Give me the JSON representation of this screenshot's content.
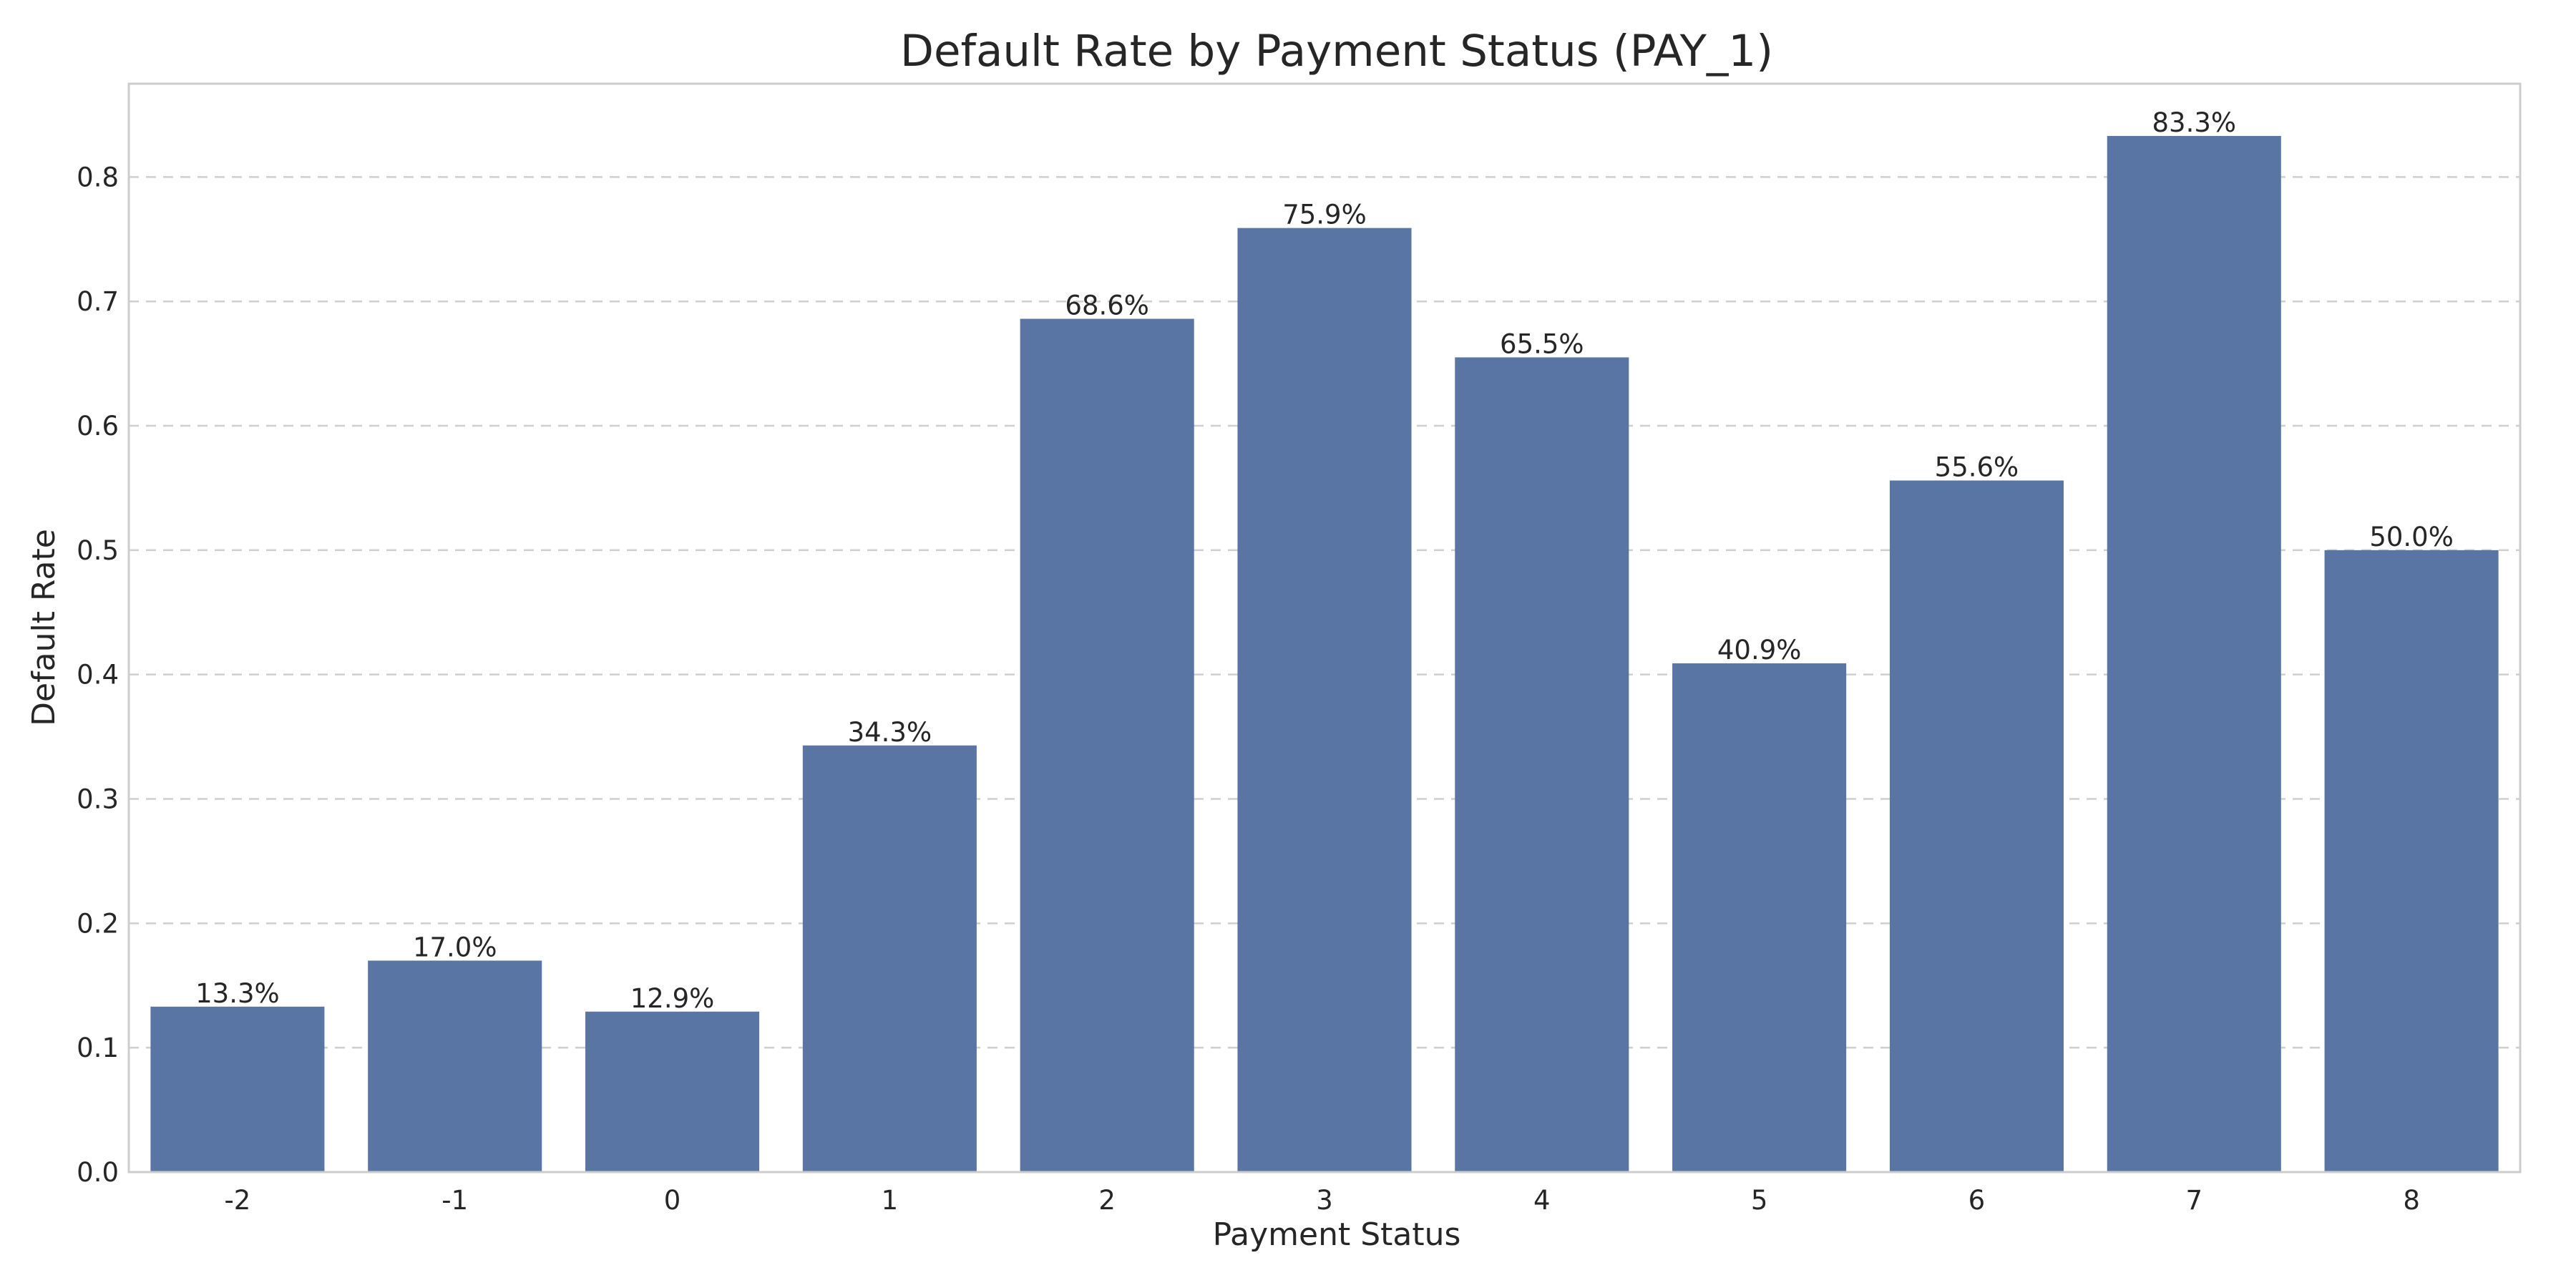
{
  "chart_data": {
    "type": "bar",
    "title": "Default Rate by Payment Status (PAY_1)",
    "xlabel": "Payment Status",
    "ylabel": "Default Rate",
    "categories": [
      "-2",
      "-1",
      "0",
      "1",
      "2",
      "3",
      "4",
      "5",
      "6",
      "7",
      "8"
    ],
    "values": [
      0.133,
      0.17,
      0.129,
      0.343,
      0.686,
      0.759,
      0.655,
      0.409,
      0.556,
      0.833,
      0.5
    ],
    "data_labels": [
      "13.3%",
      "17.0%",
      "12.9%",
      "34.3%",
      "68.6%",
      "75.9%",
      "65.5%",
      "40.9%",
      "55.6%",
      "83.3%",
      "50.0%"
    ],
    "ylim": [
      0,
      0.875
    ],
    "yticks": [
      0.0,
      0.1,
      0.2,
      0.3,
      0.4,
      0.5,
      0.6,
      0.7,
      0.8
    ],
    "ytick_labels": [
      "0.0",
      "0.1",
      "0.2",
      "0.3",
      "0.4",
      "0.5",
      "0.6",
      "0.7",
      "0.8"
    ],
    "grid": "y-dashed",
    "bar_color": "#5875a4"
  }
}
